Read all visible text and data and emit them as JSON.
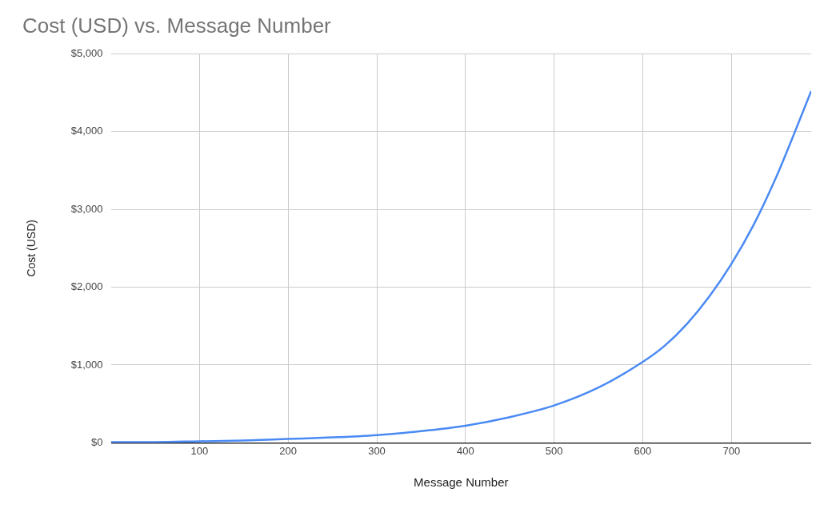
{
  "chart_data": {
    "type": "line",
    "title": "Cost (USD) vs. Message Number",
    "xlabel": "Message Number",
    "ylabel": "Cost (USD)",
    "series": [
      {
        "color": "#4a8af4",
        "x": [
          0,
          50,
          100,
          150,
          200,
          250,
          300,
          350,
          400,
          450,
          500,
          550,
          600,
          625,
          650,
          675,
          700,
          725,
          750,
          770,
          790
        ],
        "values": [
          10,
          10,
          20,
          30,
          50,
          70,
          100,
          150,
          220,
          330,
          480,
          710,
          1040,
          1250,
          1530,
          1880,
          2300,
          2800,
          3400,
          3950,
          4520
        ]
      }
    ],
    "xlim": [
      0,
      790
    ],
    "xticks": [
      100,
      200,
      300,
      400,
      500,
      600,
      700
    ],
    "ylim": [
      0,
      5000
    ],
    "yticks": [
      {
        "value": 0,
        "label": "$0"
      },
      {
        "value": 1000,
        "label": "$1,000"
      },
      {
        "value": 2000,
        "label": "$2,000"
      },
      {
        "value": 3000,
        "label": "$3,000"
      },
      {
        "value": 4000,
        "label": "$4,000"
      },
      {
        "value": 5000,
        "label": "$5,000"
      }
    ],
    "grid": true,
    "legend": false,
    "marker": "none",
    "line_style": "solid"
  }
}
